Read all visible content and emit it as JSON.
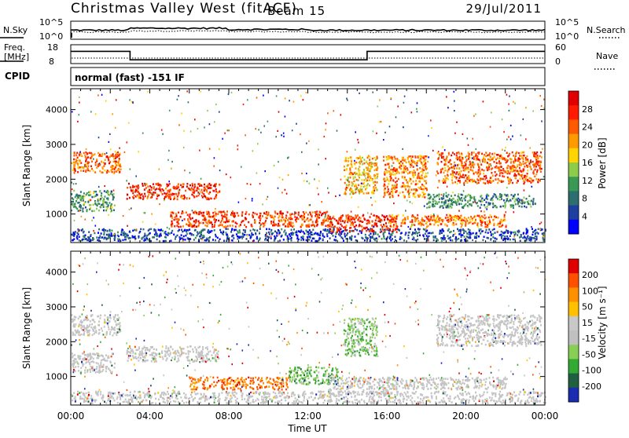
{
  "header": {
    "station": "Christmas Valley West (fitACF)",
    "beam": "Beam 15",
    "date": "29/Jul/2011"
  },
  "noise_panel": {
    "left_label": "N.Sky",
    "right_label": "N.Search",
    "left_ticks": [
      "10^5",
      "10^0"
    ],
    "right_ticks": [
      "10^5",
      "10^0"
    ]
  },
  "freq_panel": {
    "left_label_1": "Freq.",
    "left_label_2": "[MHz]",
    "right_label": "Nave",
    "left_ticks": [
      "18",
      "8"
    ],
    "right_ticks": [
      "60",
      "0"
    ],
    "freq_series": {
      "name": "Freq.",
      "x": [
        "00:00",
        "03:00",
        "03:00",
        "15:00",
        "15:00",
        "24:00"
      ],
      "y": [
        14.5,
        14.5,
        10.0,
        10.0,
        14.5,
        14.5
      ]
    },
    "nave_level": 10
  },
  "cpid": {
    "label": "CPID",
    "value": "normal (fast) -151 IF"
  },
  "chart_data": [
    {
      "type": "heatmap",
      "xlabel": "",
      "ylabel": "Slant Range [km]",
      "xlim": [
        "00:00",
        "24:00"
      ],
      "ylim": [
        180,
        4600
      ],
      "x_ticks": [
        "00:00",
        "04:00",
        "08:00",
        "12:00",
        "16:00",
        "20:00",
        "00:00"
      ],
      "y_ticks": [
        1000,
        2000,
        3000,
        4000
      ],
      "colorbar": {
        "label": "Power [dB]",
        "ticks": [
          "28",
          "24",
          "20",
          "16",
          "12",
          "8",
          "4"
        ],
        "colors": [
          "#0000ff",
          "#1c3fa0",
          "#2d6e6e",
          "#3a9a55",
          "#8ccc4a",
          "#ffd400",
          "#ff9a00",
          "#ff5a00",
          "#ff1a00",
          "#e00000"
        ]
      },
      "scatter_regions": [
        {
          "name": "Lower band",
          "x_start": 0.0,
          "x_end": 24.0,
          "range_start": 250,
          "range_end": 600,
          "level": 0.15
        },
        {
          "name": "Evening F band",
          "x_start": 0.0,
          "x_end": 2.5,
          "range_start": 2200,
          "range_end": 2800,
          "level": 0.75
        },
        {
          "name": "Early ground scatter",
          "x_start": 0.0,
          "x_end": 2.2,
          "range_start": 1100,
          "range_end": 1700,
          "level": 0.35
        },
        {
          "name": "Morning band",
          "x_start": 2.8,
          "x_end": 7.5,
          "range_start": 1450,
          "range_end": 1900,
          "level": 0.85
        },
        {
          "name": "Daytime main",
          "x_start": 5.0,
          "x_end": 13.0,
          "range_start": 650,
          "range_end": 1100,
          "level": 0.8
        },
        {
          "name": "Noon band",
          "x_start": 13.0,
          "x_end": 16.5,
          "range_start": 500,
          "range_end": 1000,
          "level": 0.85
        },
        {
          "name": "Afternoon",
          "x_start": 16.0,
          "x_end": 22.0,
          "range_start": 650,
          "range_end": 1000,
          "level": 0.7
        },
        {
          "name": "Arc 1",
          "x_start": 13.8,
          "x_end": 15.5,
          "range_start": 1600,
          "range_end": 2700,
          "level": 0.6
        },
        {
          "name": "Arc 2",
          "x_start": 15.8,
          "x_end": 18.0,
          "range_start": 1500,
          "range_end": 2700,
          "level": 0.7
        },
        {
          "name": "Evening band 2",
          "x_start": 18.5,
          "x_end": 23.8,
          "range_start": 1900,
          "range_end": 2800,
          "level": 0.75
        },
        {
          "name": "Late band",
          "x_start": 18.0,
          "x_end": 23.5,
          "range_start": 1200,
          "range_end": 1600,
          "level": 0.3
        }
      ]
    },
    {
      "type": "heatmap",
      "xlabel": "Time UT",
      "ylabel": "Slant Range [km]",
      "xlim": [
        "00:00",
        "24:00"
      ],
      "ylim": [
        180,
        4600
      ],
      "x_ticks": [
        "00:00",
        "04:00",
        "08:00",
        "12:00",
        "16:00",
        "20:00",
        "00:00"
      ],
      "y_ticks": [
        1000,
        2000,
        3000,
        4000
      ],
      "colorbar": {
        "label": "Velocity [m s⁻¹]",
        "ticks": [
          "200",
          "100",
          "50",
          "15",
          "-15",
          "-50",
          "-100",
          "-200"
        ],
        "colors": [
          "#1a2cb0",
          "#1f6040",
          "#33aa33",
          "#88d055",
          "#c0c0c0",
          "#c8c8c8",
          "#ffc000",
          "#ff9000",
          "#ff5000",
          "#e00000"
        ]
      },
      "scatter_regions": [
        {
          "name": "Ground scatter low",
          "x_start": 0.0,
          "x_end": 24.0,
          "range_start": 250,
          "range_end": 600,
          "level": 0.5
        },
        {
          "name": "Evening F band",
          "x_start": 0.0,
          "x_end": 2.5,
          "range_start": 2200,
          "range_end": 2800,
          "level": 0.5
        },
        {
          "name": "Early",
          "x_start": 0.0,
          "x_end": 2.2,
          "range_start": 1100,
          "range_end": 1700,
          "level": 0.5
        },
        {
          "name": "Morning band",
          "x_start": 2.8,
          "x_end": 7.5,
          "range_start": 1450,
          "range_end": 1900,
          "level": 0.5
        },
        {
          "name": "Daytime flow",
          "x_start": 6.0,
          "x_end": 11.0,
          "range_start": 650,
          "range_end": 1000,
          "level": 0.8
        },
        {
          "name": "Green patch",
          "x_start": 11.0,
          "x_end": 13.5,
          "range_start": 800,
          "range_end": 1300,
          "level": 0.3
        },
        {
          "name": "Noon band",
          "x_start": 13.0,
          "x_end": 16.5,
          "range_start": 500,
          "range_end": 1000,
          "level": 0.5
        },
        {
          "name": "Afternoon",
          "x_start": 16.0,
          "x_end": 22.0,
          "range_start": 650,
          "range_end": 1000,
          "level": 0.5
        },
        {
          "name": "Arc 1",
          "x_start": 13.8,
          "x_end": 15.5,
          "range_start": 1600,
          "range_end": 2700,
          "level": 0.35
        },
        {
          "name": "Evening band 2",
          "x_start": 18.5,
          "x_end": 23.8,
          "range_start": 1900,
          "range_end": 2800,
          "level": 0.5
        }
      ]
    }
  ]
}
